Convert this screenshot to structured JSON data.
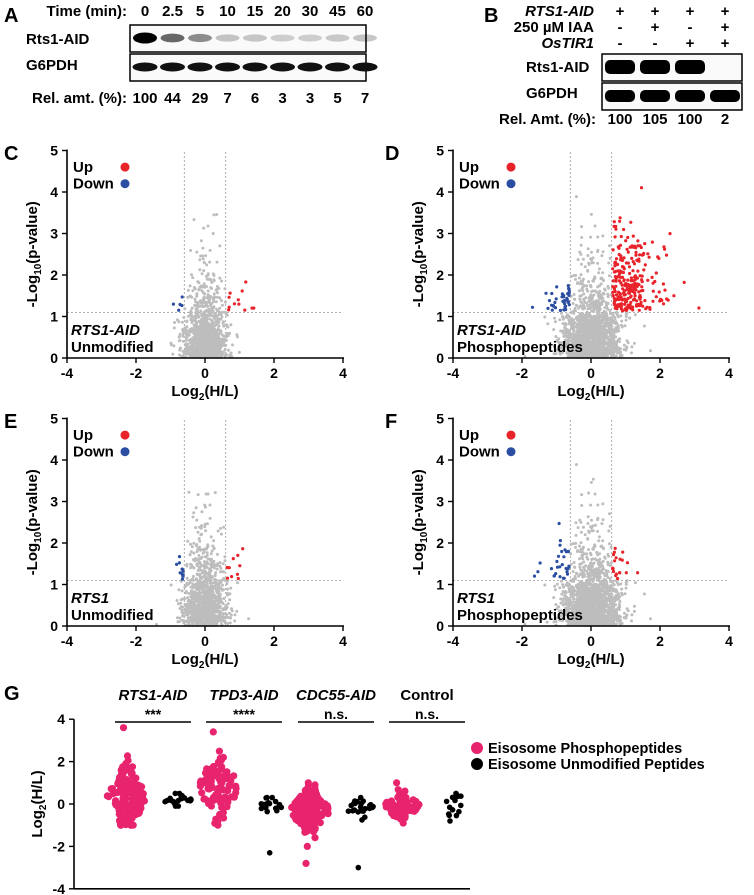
{
  "panelA": {
    "letter": "A",
    "time_label": "Time (min):",
    "times": [
      "0",
      "2.5",
      "5",
      "10",
      "15",
      "20",
      "30",
      "45",
      "60"
    ],
    "rows": [
      "Rts1-AID",
      "G6PDH"
    ],
    "rel_label": "Rel. amt. (%):",
    "rel_values": [
      "100",
      "44",
      "29",
      "7",
      "6",
      "3",
      "3",
      "5",
      "7"
    ],
    "band_intensity": [
      1.0,
      0.44,
      0.29,
      0.07,
      0.06,
      0.03,
      0.03,
      0.05,
      0.07
    ]
  },
  "panelB": {
    "letter": "B",
    "condition_labels": [
      "RTS1-AID",
      "250 µM IAA",
      "OsTIR1"
    ],
    "conditions": [
      [
        "+",
        "+",
        "+",
        "+"
      ],
      [
        "-",
        "+",
        "-",
        "+"
      ],
      [
        "-",
        "-",
        "+",
        "+"
      ]
    ],
    "rows": [
      "Rts1-AID",
      "G6PDH"
    ],
    "rel_label": "Rel. Amt. (%):",
    "rel_values": [
      "100",
      "105",
      "100",
      "2"
    ],
    "band_intensity": [
      1.0,
      1.05,
      1.0,
      0.02
    ]
  },
  "legend": {
    "up": "Up",
    "down": "Down",
    "up_color": "#e8232a",
    "down_color": "#2b4ea2"
  },
  "colors": {
    "gray": "#bdbdbd",
    "pink": "#e8246e",
    "black": "#000000"
  },
  "chart_data": [
    {
      "id": "C",
      "type": "scatter",
      "strain": "RTS1-AID",
      "subtitle": "Unmodified",
      "xlabel": "Log2(H/L)",
      "ylabel": "-Log10(p-value)",
      "xlim": [
        -4,
        4
      ],
      "ylim": [
        0,
        5
      ],
      "xticks": [
        "-4",
        "-2",
        "0",
        "2",
        "4"
      ],
      "yticks": [
        "0",
        "1",
        "2",
        "3",
        "4",
        "5"
      ],
      "thresholds": {
        "x": [
          -0.6,
          0.6
        ],
        "y": 1.1
      },
      "up_count": 12,
      "down_count": 5
    },
    {
      "id": "D",
      "type": "scatter",
      "strain": "RTS1-AID",
      "subtitle": "Phosphopeptides",
      "xlabel": "Log2(H/L)",
      "ylabel": "-Log10(p-value)",
      "xlim": [
        -4,
        4
      ],
      "ylim": [
        0,
        5
      ],
      "xticks": [
        "-4",
        "-2",
        "0",
        "2",
        "4"
      ],
      "yticks": [
        "0",
        "1",
        "2",
        "3",
        "4",
        "5"
      ],
      "thresholds": {
        "x": [
          -0.6,
          0.6
        ],
        "y": 1.1
      },
      "up_count": 260,
      "down_count": 40
    },
    {
      "id": "E",
      "type": "scatter",
      "strain": "RTS1",
      "subtitle": "Unmodified",
      "xlabel": "Log2(H/L)",
      "ylabel": "-Log10(p-value)",
      "xlim": [
        -4,
        4
      ],
      "ylim": [
        0,
        5
      ],
      "xticks": [
        "-4",
        "-2",
        "0",
        "2",
        "4"
      ],
      "yticks": [
        "0",
        "1",
        "2",
        "3",
        "4",
        "5"
      ],
      "thresholds": {
        "x": [
          -0.6,
          0.6
        ],
        "y": 1.1
      },
      "up_count": 10,
      "down_count": 12
    },
    {
      "id": "F",
      "type": "scatter",
      "strain": "RTS1",
      "subtitle": "Phosphopeptides",
      "xlabel": "Log2(H/L)",
      "ylabel": "-Log10(p-value)",
      "xlim": [
        -4,
        4
      ],
      "ylim": [
        0,
        5
      ],
      "xticks": [
        "-4",
        "-2",
        "0",
        "2",
        "4"
      ],
      "yticks": [
        "0",
        "1",
        "2",
        "3",
        "4",
        "5"
      ],
      "thresholds": {
        "x": [
          -0.6,
          0.6
        ],
        "y": 1.1
      },
      "up_count": 20,
      "down_count": 30
    },
    {
      "id": "G",
      "type": "scatter",
      "title": "",
      "ylabel": "Log2(H/L)",
      "ylim": [
        -4,
        4
      ],
      "yticks": [
        "-4",
        "-2",
        "0",
        "2",
        "4"
      ],
      "groups": [
        {
          "name": "RTS1-AID",
          "significance": "***",
          "italic": true,
          "phospho": {
            "n": 150,
            "center": 0.3,
            "spread": 0.7,
            "min": -1.0,
            "max": 3.6
          },
          "unmodified": {
            "n": 20,
            "center": 0.15,
            "spread": 0.15,
            "min": -0.1,
            "max": 0.5
          }
        },
        {
          "name": "TPD3-AID",
          "significance": "****",
          "italic": true,
          "phospho": {
            "n": 90,
            "center": 0.8,
            "spread": 0.8,
            "min": -1.0,
            "max": 3.4
          },
          "unmodified": {
            "n": 20,
            "center": -0.1,
            "spread": 0.2,
            "min": -2.3,
            "max": 0.3
          }
        },
        {
          "name": "CDC55-AID",
          "significance": "n.s.",
          "italic": true,
          "phospho": {
            "n": 160,
            "center": -0.3,
            "spread": 0.5,
            "min": -2.8,
            "max": 1.0
          },
          "unmodified": {
            "n": 25,
            "center": -0.2,
            "spread": 0.25,
            "min": -3.0,
            "max": 0.3
          }
        },
        {
          "name": "Control",
          "significance": "n.s.",
          "italic": false,
          "phospho": {
            "n": 80,
            "center": -0.1,
            "spread": 0.3,
            "min": -0.9,
            "max": 1.0
          },
          "unmodified": {
            "n": 16,
            "center": 0.0,
            "spread": 0.3,
            "min": -0.8,
            "max": 0.5
          }
        }
      ],
      "legend": [
        "Eisosome Phosphopeptides",
        "Eisosome Unmodified Peptides"
      ]
    }
  ]
}
